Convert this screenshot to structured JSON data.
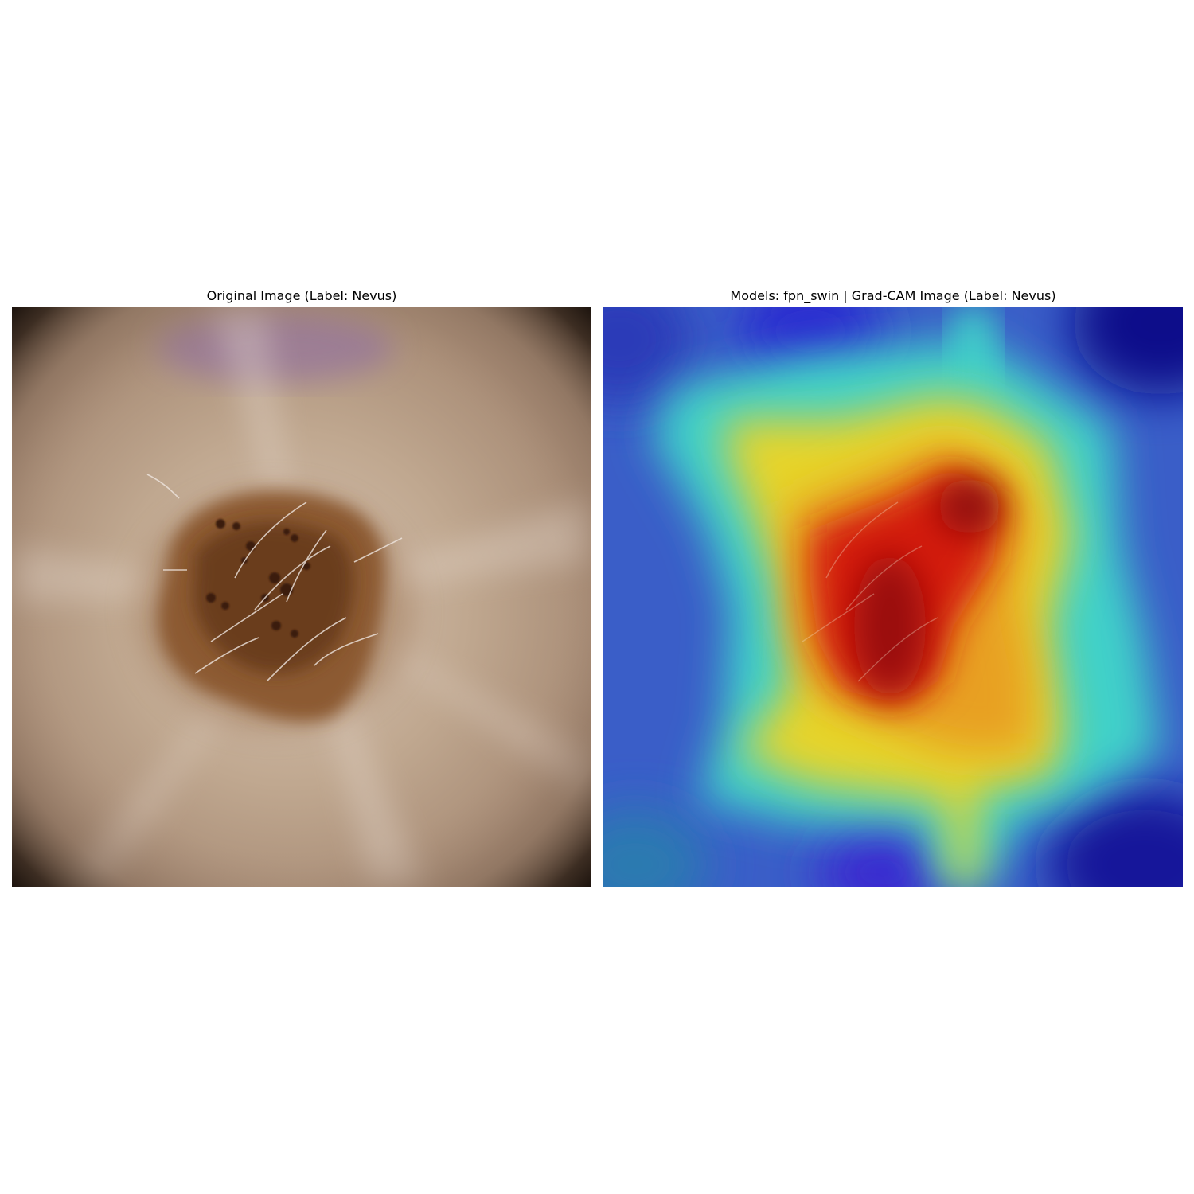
{
  "figure": {
    "left_title": "Original Image (Label: Nevus)",
    "right_title": "Models: fpn_swin | Grad-CAM Image (Label: Nevus)"
  },
  "panels": [
    {
      "content": "dermoscopy-photo",
      "depicts": "nevus lesion on skin"
    },
    {
      "content": "grad-cam-heatmap-overlay",
      "colormap": "jet"
    }
  ],
  "colors": {
    "skin": "#b59a83",
    "lesion_dark": "#5a3418",
    "lesion_mid": "#8a5a30",
    "vignette": "#1a120c",
    "purple_mark": "#8d6aa6",
    "cam_low": "#1e1e9e",
    "cam_blue": "#3a5ec8",
    "cam_cyan": "#3fd1c9",
    "cam_yellow": "#e6d42a",
    "cam_orange": "#e8a020",
    "cam_red": "#d41c10",
    "cam_dark_red": "#8e1010"
  }
}
